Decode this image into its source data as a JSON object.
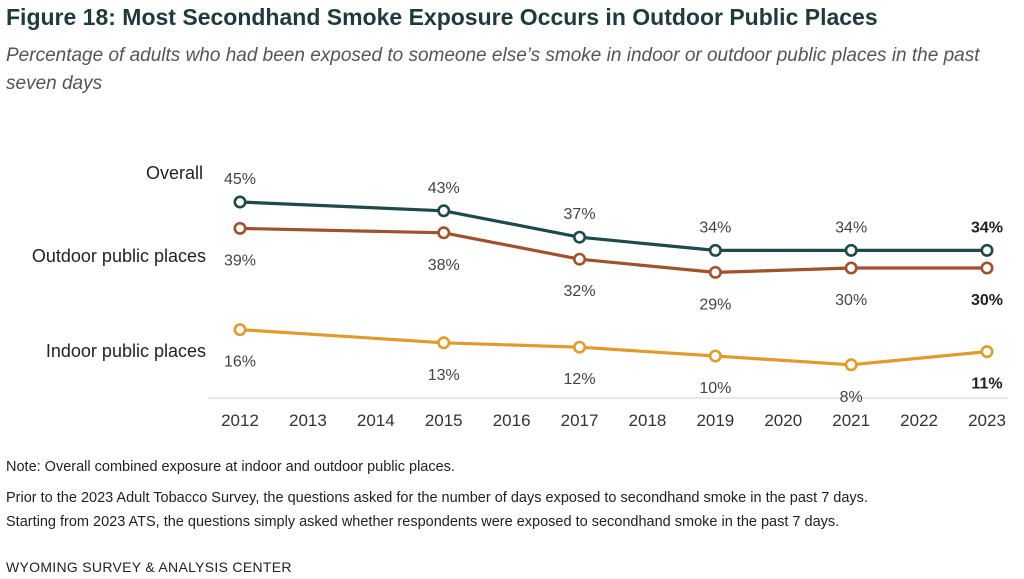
{
  "title": "Figure 18: Most Secondhand Smoke Exposure Occurs in Outdoor Public Places",
  "subtitle": "Percentage of adults who had been exposed to someone else’s smoke in indoor or outdoor public places in the past seven days",
  "notes": {
    "note1": "Note: Overall combined exposure at indoor and outdoor public places.",
    "note2": "Prior to the 2023 Adult Tobacco Survey, the questions asked for the number of days exposed to secondhand smoke in the past 7 days.",
    "note3": "Starting from 2023 ATS, the questions simply asked whether respondents were exposed to secondhand smoke in the past 7 days."
  },
  "footer": "WYOMING SURVEY & ANALYSIS CENTER",
  "chart_data": {
    "type": "line",
    "x_ticks": [
      "2012",
      "2013",
      "2014",
      "2015",
      "2016",
      "2017",
      "2018",
      "2019",
      "2020",
      "2021",
      "2022",
      "2023"
    ],
    "x": [
      2012,
      2015,
      2017,
      2019,
      2021,
      2023
    ],
    "xlim": [
      2012,
      2023
    ],
    "ylim": [
      0,
      50
    ],
    "grid": false,
    "legend": "none",
    "series": [
      {
        "name": "Overall",
        "color": "#1e4a4c",
        "values": [
          45,
          43,
          37,
          34,
          34,
          34
        ],
        "labels": [
          "45%",
          "43%",
          "37%",
          "34%",
          "34%",
          "34%"
        ],
        "label_position": "above"
      },
      {
        "name": "Outdoor public places",
        "color": "#a0522d",
        "values": [
          39,
          38,
          32,
          29,
          30,
          30
        ],
        "labels": [
          "39%",
          "38%",
          "32%",
          "29%",
          "30%",
          "30%"
        ],
        "label_position": "below"
      },
      {
        "name": "Indoor public places",
        "color": "#e19a2b",
        "values": [
          16,
          13,
          12,
          10,
          8,
          11
        ],
        "labels": [
          "16%",
          "13%",
          "12%",
          "10%",
          "8%",
          "11%"
        ],
        "label_position": "below"
      }
    ]
  }
}
